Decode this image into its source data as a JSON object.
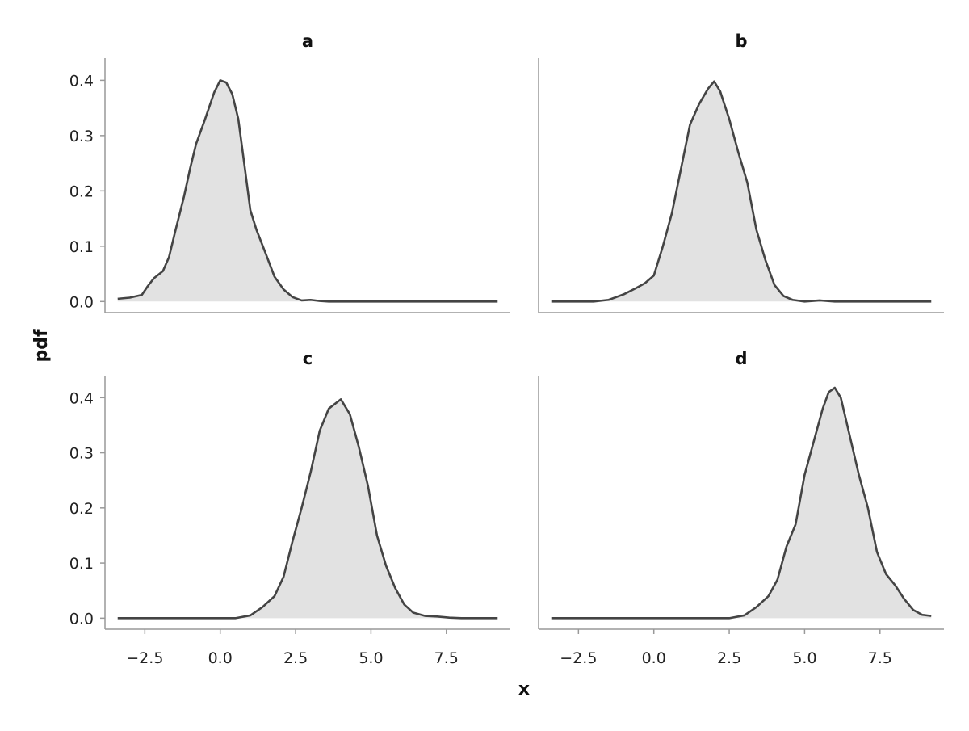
{
  "chart_data": {
    "type": "area",
    "xlabel": "x",
    "ylabel": "pdf",
    "xlim": [
      -3.5,
      9.3
    ],
    "ylim": [
      -0.02,
      0.44
    ],
    "x_ticks": [
      -2.5,
      0.0,
      2.5,
      5.0,
      7.5
    ],
    "x_tick_labels": [
      "−2.5",
      "0.0",
      "2.5",
      "5.0",
      "7.5"
    ],
    "y_ticks": [
      0.0,
      0.1,
      0.2,
      0.3,
      0.4
    ],
    "y_tick_labels": [
      "0.0",
      "0.1",
      "0.2",
      "0.3",
      "0.4"
    ],
    "grid": false,
    "colors": {
      "line": "#444444",
      "fill": "#e2e2e2",
      "axis": "#999999"
    },
    "panels": [
      {
        "title": "a",
        "x": [
          -3.4,
          -3.0,
          -2.6,
          -2.4,
          -2.2,
          -1.9,
          -1.7,
          -1.5,
          -1.2,
          -1.0,
          -0.8,
          -0.5,
          -0.2,
          0.0,
          0.2,
          0.4,
          0.6,
          0.8,
          1.0,
          1.2,
          1.5,
          1.8,
          2.1,
          2.4,
          2.7,
          3.0,
          3.3,
          3.6,
          4.0,
          5.0,
          6.0,
          7.0,
          8.0,
          9.2
        ],
        "y": [
          0.005,
          0.007,
          0.012,
          0.028,
          0.042,
          0.055,
          0.08,
          0.125,
          0.19,
          0.24,
          0.285,
          0.33,
          0.378,
          0.4,
          0.396,
          0.375,
          0.33,
          0.248,
          0.165,
          0.13,
          0.088,
          0.045,
          0.022,
          0.008,
          0.002,
          0.003,
          0.001,
          0.0,
          0.0,
          0.0,
          0.0,
          0.0,
          0.0,
          0.0
        ]
      },
      {
        "title": "b",
        "x": [
          -3.4,
          -2.0,
          -1.5,
          -1.0,
          -0.6,
          -0.3,
          0.0,
          0.3,
          0.6,
          0.9,
          1.2,
          1.5,
          1.8,
          2.0,
          2.2,
          2.5,
          2.8,
          3.1,
          3.4,
          3.7,
          4.0,
          4.3,
          4.6,
          5.0,
          5.5,
          6.0,
          7.0,
          8.0,
          9.2
        ],
        "y": [
          0.0,
          0.0,
          0.003,
          0.013,
          0.024,
          0.033,
          0.047,
          0.1,
          0.16,
          0.24,
          0.32,
          0.357,
          0.385,
          0.398,
          0.38,
          0.33,
          0.27,
          0.215,
          0.13,
          0.075,
          0.03,
          0.01,
          0.003,
          0.0,
          0.002,
          0.0,
          0.0,
          0.0,
          0.0
        ]
      },
      {
        "title": "c",
        "x": [
          -3.4,
          -1.0,
          0.5,
          1.0,
          1.4,
          1.8,
          2.1,
          2.4,
          2.7,
          3.0,
          3.3,
          3.6,
          4.0,
          4.3,
          4.6,
          4.9,
          5.2,
          5.5,
          5.8,
          6.1,
          6.4,
          6.8,
          7.2,
          7.6,
          8.0,
          9.2
        ],
        "y": [
          0.0,
          0.0,
          0.0,
          0.005,
          0.02,
          0.04,
          0.075,
          0.14,
          0.2,
          0.265,
          0.34,
          0.38,
          0.397,
          0.37,
          0.31,
          0.24,
          0.15,
          0.095,
          0.055,
          0.025,
          0.01,
          0.004,
          0.003,
          0.001,
          0.0,
          0.0
        ]
      },
      {
        "title": "d",
        "x": [
          -3.4,
          0.0,
          2.5,
          3.0,
          3.4,
          3.8,
          4.1,
          4.4,
          4.7,
          5.0,
          5.3,
          5.6,
          5.8,
          6.0,
          6.2,
          6.5,
          6.8,
          7.1,
          7.4,
          7.7,
          8.0,
          8.3,
          8.6,
          8.9,
          9.2
        ],
        "y": [
          0.0,
          0.0,
          0.0,
          0.005,
          0.02,
          0.04,
          0.07,
          0.13,
          0.17,
          0.26,
          0.32,
          0.38,
          0.41,
          0.418,
          0.4,
          0.33,
          0.26,
          0.2,
          0.12,
          0.08,
          0.06,
          0.035,
          0.015,
          0.006,
          0.004
        ]
      }
    ]
  }
}
